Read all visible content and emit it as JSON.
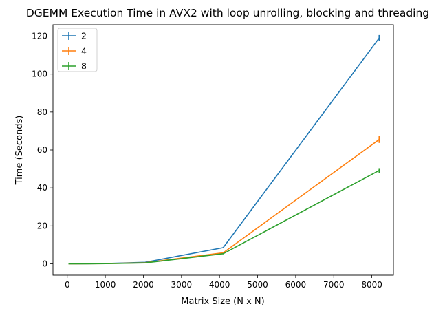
{
  "chart_data": {
    "type": "line",
    "title": "DGEMM Execution Time in AVX2 with loop unrolling, blocking and threading",
    "xlabel": "Matrix Size (N x N)",
    "ylabel": "Time (Seconds)",
    "xlim": [
      -375,
      8567
    ],
    "ylim": [
      -6,
      126
    ],
    "xticks": [
      0,
      1000,
      2000,
      3000,
      4000,
      5000,
      6000,
      7000,
      8000
    ],
    "yticks": [
      0,
      20,
      40,
      60,
      80,
      100,
      120
    ],
    "x": [
      32,
      128,
      256,
      512,
      1024,
      2048,
      4096,
      8192
    ],
    "grid": false,
    "legend_position": "top-left",
    "error_bars": true,
    "series": [
      {
        "name": "2",
        "color": "#1f77b4",
        "values": [
          0.0,
          0.0,
          0.0,
          0.05,
          0.15,
          0.8,
          8.5,
          119.0
        ],
        "errors": [
          0,
          0,
          0,
          0,
          0,
          0.1,
          0.3,
          1.6
        ]
      },
      {
        "name": "4",
        "color": "#ff7f0e",
        "values": [
          0.0,
          0.0,
          0.0,
          0.03,
          0.1,
          0.55,
          5.8,
          65.5
        ],
        "errors": [
          0,
          0,
          0,
          0,
          0,
          0.1,
          0.3,
          1.8
        ]
      },
      {
        "name": "8",
        "color": "#2ca02c",
        "values": [
          0.0,
          0.0,
          0.0,
          0.02,
          0.08,
          0.45,
          5.3,
          49.2
        ],
        "errors": [
          0,
          0,
          0,
          0,
          0,
          0.1,
          0.3,
          1.2
        ]
      }
    ]
  }
}
